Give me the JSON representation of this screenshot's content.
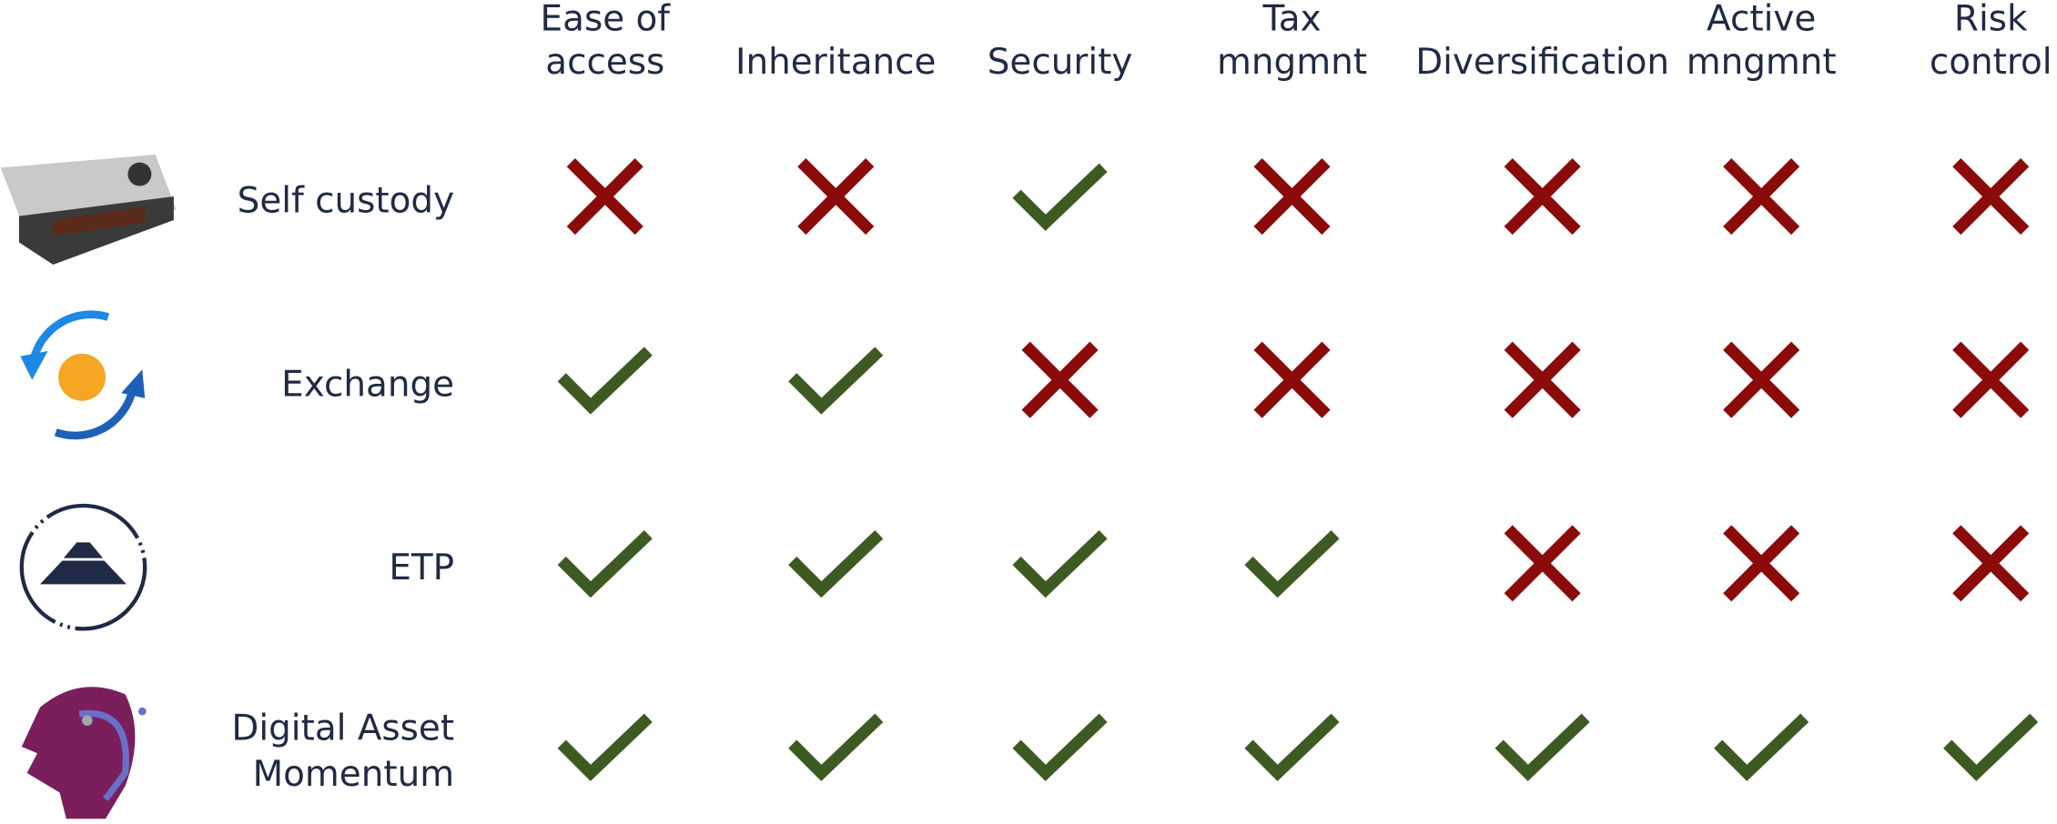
{
  "columns": [
    [
      "Ease of",
      "access"
    ],
    [
      "Inheritance"
    ],
    [
      "Security"
    ],
    [
      "Tax",
      "mngmnt"
    ],
    [
      "Diversification"
    ],
    [
      "Active",
      "mngmnt"
    ],
    [
      "Risk",
      "control"
    ]
  ],
  "rows": [
    {
      "label": [
        "Self custody"
      ],
      "cells": [
        false,
        false,
        true,
        false,
        false,
        false,
        false
      ]
    },
    {
      "label": [
        "Exchange"
      ],
      "cells": [
        true,
        true,
        false,
        false,
        false,
        false,
        false
      ]
    },
    {
      "label": [
        "ETP"
      ],
      "cells": [
        true,
        true,
        true,
        true,
        false,
        false,
        false
      ]
    },
    {
      "label": [
        "Digital Asset",
        "Momentum"
      ],
      "cells": [
        true,
        true,
        true,
        true,
        true,
        true,
        true
      ]
    }
  ]
}
